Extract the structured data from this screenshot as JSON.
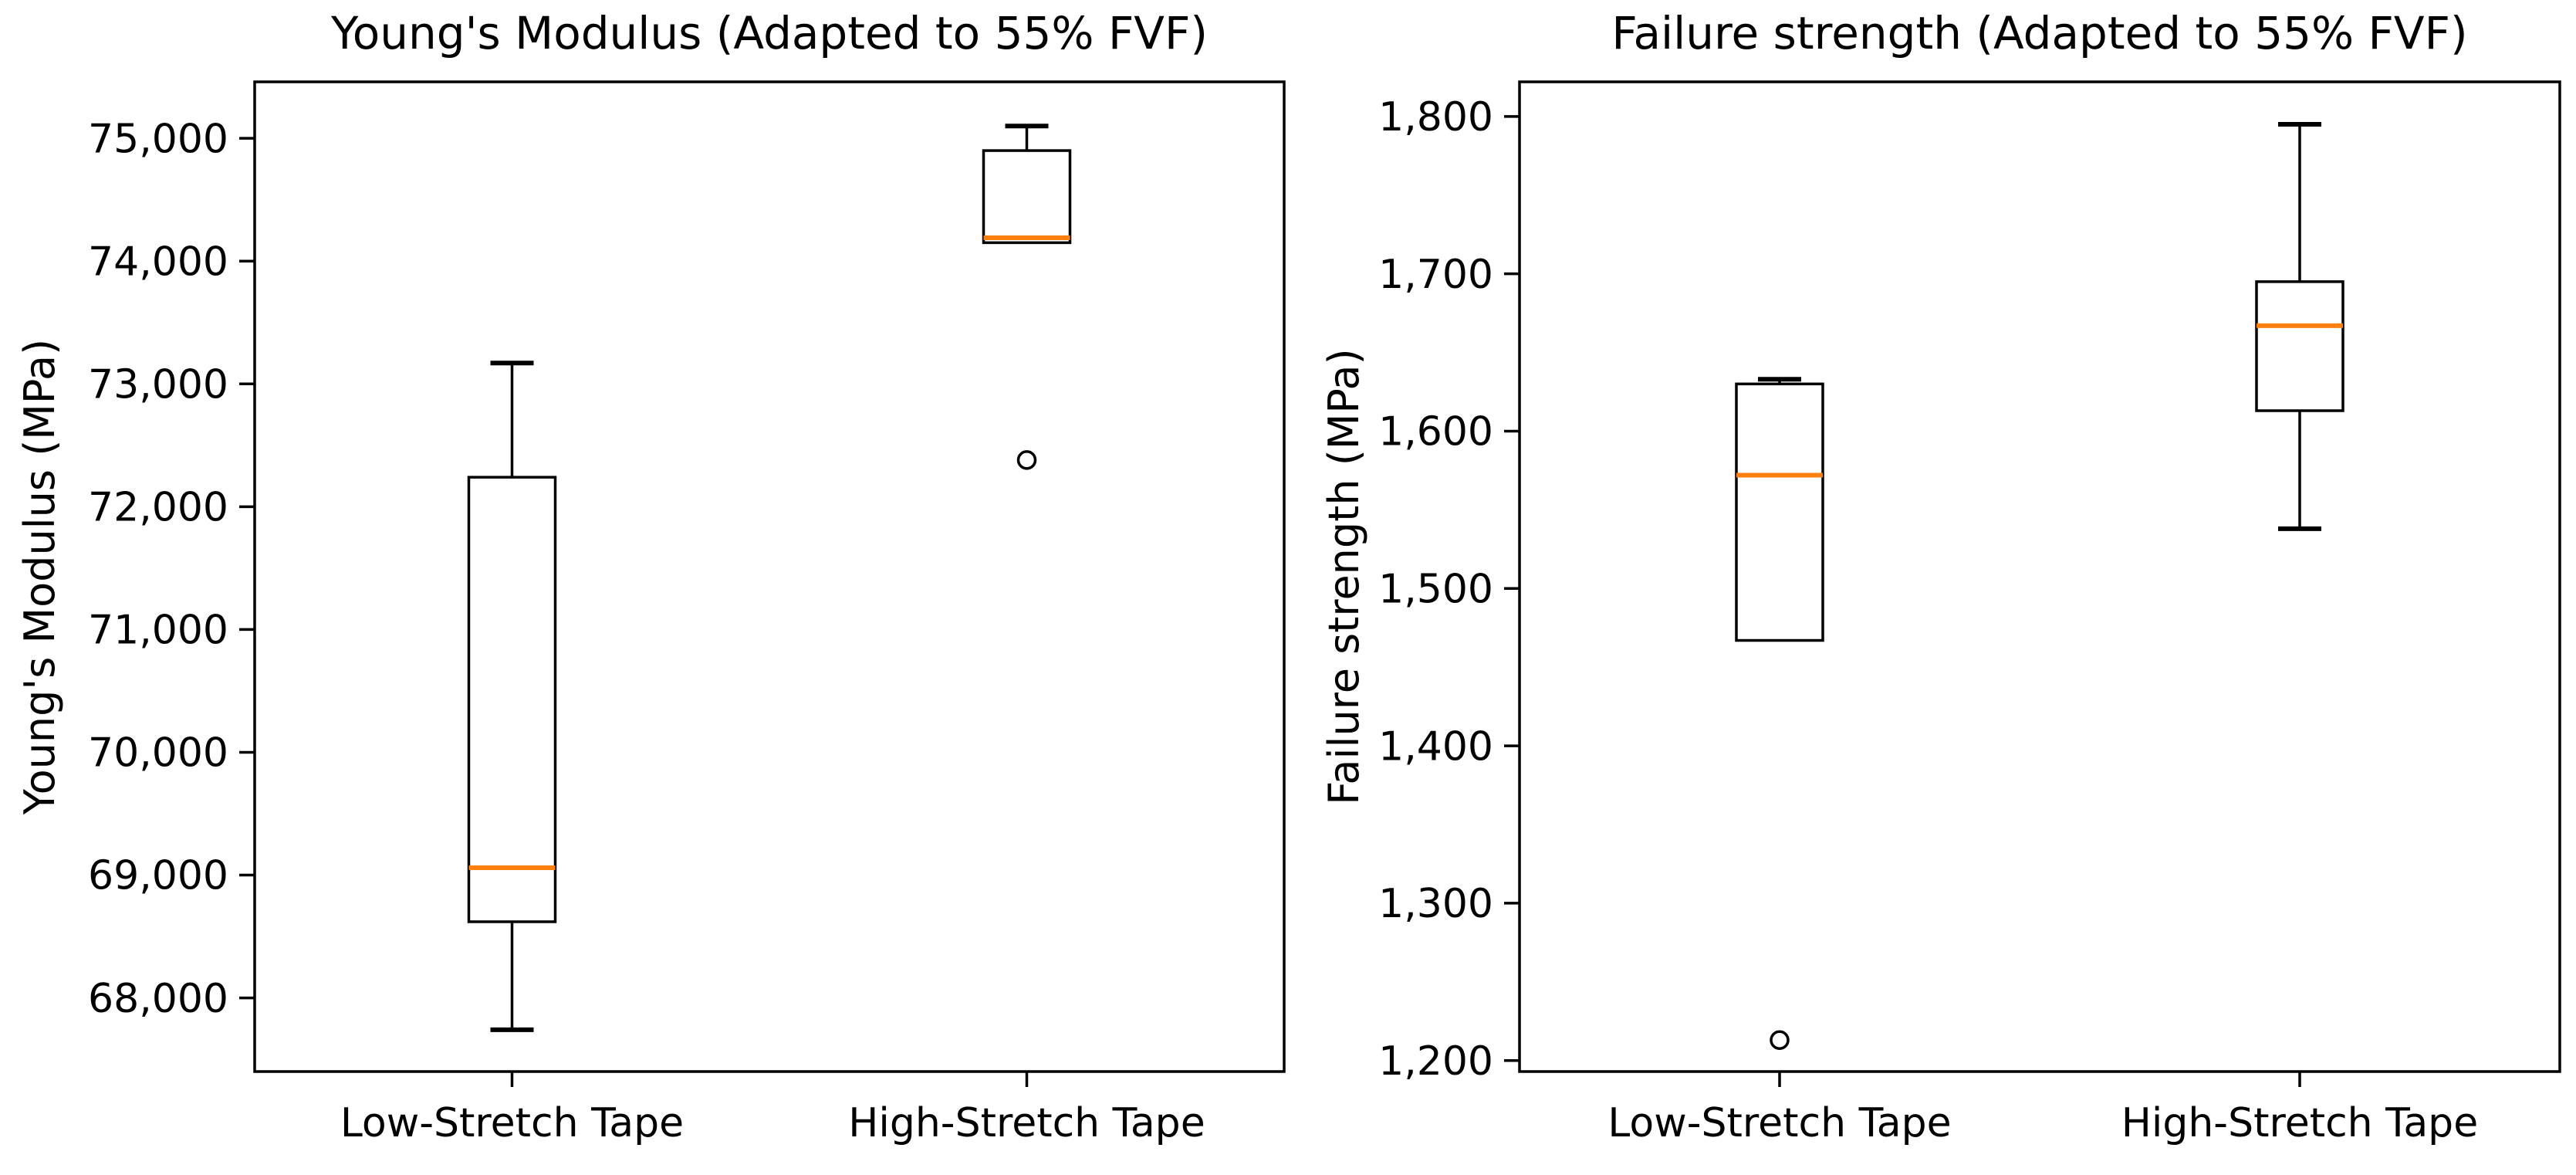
{
  "figure": {
    "background": "#ffffff"
  },
  "style": {
    "line_color": "#000000",
    "median_color": "#ff7f0e",
    "box_fill": "none",
    "text_color": "#000000"
  },
  "chart_data": [
    {
      "type": "box",
      "title": "Young's Modulus (Adapted to 55% FVF)",
      "ylabel": "Young's Modulus (MPa)",
      "xlabel": "",
      "grid": false,
      "legend": "none",
      "categories": [
        "Low-Stretch Tape",
        "High-Stretch Tape"
      ],
      "ylim": [
        67400,
        75460
      ],
      "yticks": [
        68000,
        69000,
        70000,
        71000,
        72000,
        73000,
        74000,
        75000
      ],
      "ytick_labels": [
        "68,000",
        "69,000",
        "70,000",
        "71,000",
        "72,000",
        "73,000",
        "74,000",
        "75,000"
      ],
      "boxes": [
        {
          "category": "Low-Stretch Tape",
          "whisker_low": 67740,
          "q1": 68620,
          "median": 69060,
          "q3": 72240,
          "whisker_high": 73170,
          "outliers": []
        },
        {
          "category": "High-Stretch Tape",
          "whisker_low": 74150,
          "q1": 74150,
          "median": 74190,
          "q3": 74900,
          "whisker_high": 75100,
          "outliers": [
            72380
          ]
        }
      ]
    },
    {
      "type": "box",
      "title": "Failure strength (Adapted to 55% FVF)",
      "ylabel": "Failure strength (MPa)",
      "xlabel": "",
      "grid": false,
      "legend": "none",
      "categories": [
        "Low-Stretch Tape",
        "High-Stretch Tape"
      ],
      "ylim": [
        1193,
        1822
      ],
      "yticks": [
        1200,
        1300,
        1400,
        1500,
        1600,
        1700,
        1800
      ],
      "ytick_labels": [
        "1,200",
        "1,300",
        "1,400",
        "1,500",
        "1,600",
        "1,700",
        "1,800"
      ],
      "boxes": [
        {
          "category": "Low-Stretch Tape",
          "whisker_low": 1467,
          "q1": 1467,
          "median": 1572,
          "q3": 1630,
          "whisker_high": 1633,
          "outliers": [
            1213
          ]
        },
        {
          "category": "High-Stretch Tape",
          "whisker_low": 1538,
          "q1": 1613,
          "median": 1667,
          "q3": 1695,
          "whisker_high": 1795,
          "outliers": []
        }
      ]
    }
  ]
}
